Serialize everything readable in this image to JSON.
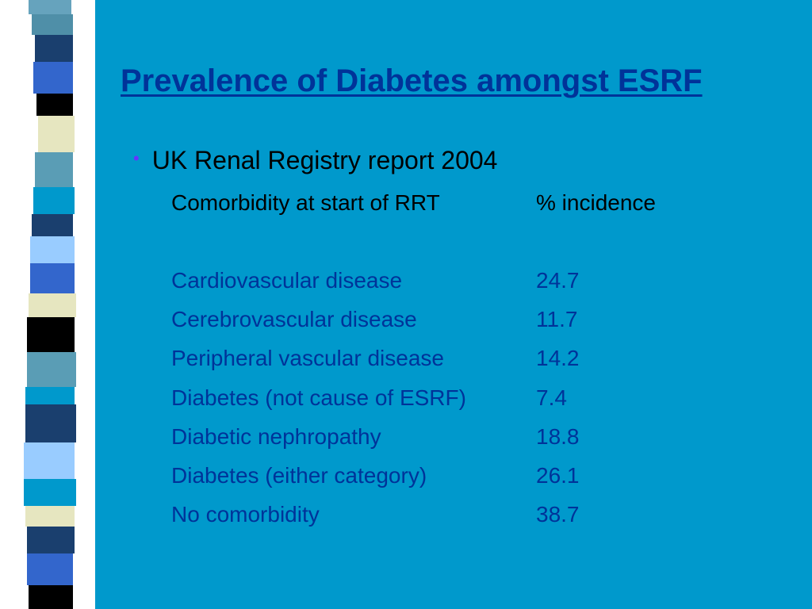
{
  "slide": {
    "title": "Prevalence of Diabetes amongst ESRF",
    "bullet": "UK Renal Registry report 2004",
    "columns": {
      "label": "Comorbidity at start of RRT",
      "value": "% incidence"
    },
    "rows": [
      {
        "label": "Cardiovascular disease",
        "value": "24.7"
      },
      {
        "label": "Cerebrovascular disease",
        "value": "11.7"
      },
      {
        "label": "Peripheral vascular disease",
        "value": "14.2"
      },
      {
        "label": "Diabetes (not cause of ESRF)",
        "value": "7.4"
      },
      {
        "label": "Diabetic nephropathy",
        "value": "18.8"
      },
      {
        "label": "Diabetes (either category)",
        "value": "26.1"
      },
      {
        "label": "No comorbidity",
        "value": "38.7"
      }
    ]
  },
  "colors": {
    "background": "#0099cc",
    "title": "#003399",
    "bullet": "#6633ff"
  }
}
